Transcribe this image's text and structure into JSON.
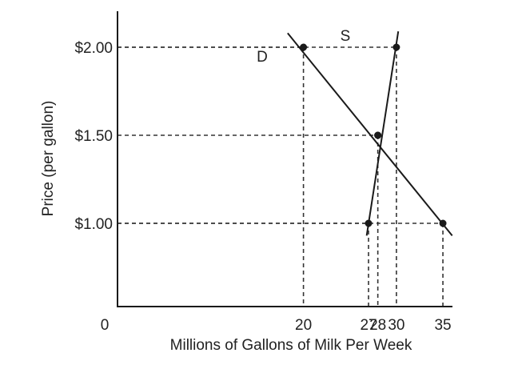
{
  "chart_data": {
    "type": "line",
    "title": "",
    "xlabel": "Millions of Gallons of Milk Per Week",
    "ylabel": "Price (per gallon)",
    "origin_label": "0",
    "xlim": [
      0,
      36.5
    ],
    "ylim": [
      0.5,
      2.2
    ],
    "x_ticks": [
      {
        "value": 20,
        "label": "20"
      },
      {
        "value": 27,
        "label": "27"
      },
      {
        "value": 28,
        "label": "28"
      },
      {
        "value": 30,
        "label": "30"
      },
      {
        "value": 35,
        "label": "35"
      }
    ],
    "y_ticks": [
      {
        "value": 2.0,
        "label": "$2.00"
      },
      {
        "value": 1.5,
        "label": "$1.50"
      },
      {
        "value": 1.0,
        "label": "$1.00"
      }
    ],
    "series": [
      {
        "name": "D",
        "label": "D",
        "line": {
          "from": [
            18.3,
            2.08
          ],
          "to": [
            36.0,
            0.93
          ]
        },
        "points": [
          {
            "x": 20,
            "y": 2.0
          },
          {
            "x": 28,
            "y": 1.5
          },
          {
            "x": 35,
            "y": 1.0
          }
        ]
      },
      {
        "name": "S",
        "label": "S",
        "line": {
          "from": [
            26.8,
            0.93
          ],
          "to": [
            30.2,
            2.09
          ]
        },
        "points": [
          {
            "x": 27,
            "y": 1.0
          },
          {
            "x": 28,
            "y": 1.5
          },
          {
            "x": 30,
            "y": 2.0
          }
        ]
      }
    ],
    "guide_lines": [
      {
        "x": 20,
        "y": 2.0
      },
      {
        "x": 30,
        "y": 2.0
      },
      {
        "x": 28,
        "y": 1.5
      },
      {
        "x": 27,
        "y": 1.0
      },
      {
        "x": 35,
        "y": 1.0
      }
    ],
    "colors": {
      "line": "#1a1a1a",
      "guide": "#333333",
      "text": "#222222"
    }
  }
}
